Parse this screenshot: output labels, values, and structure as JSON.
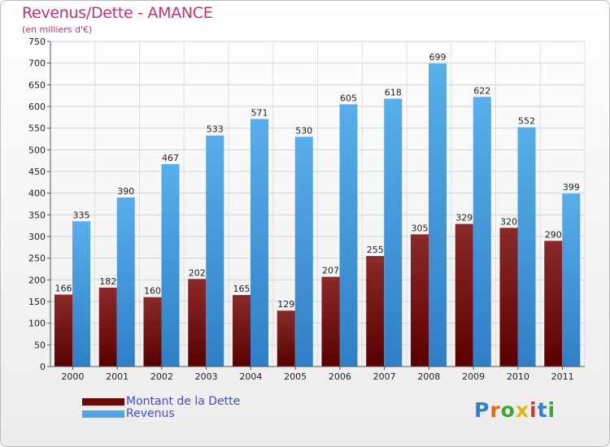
{
  "title": "Revenus/Dette - AMANCE",
  "subtitle": "(en milliers d'€)",
  "colors": {
    "debt": "#7a1a1a",
    "revenue": "#4ea6e6",
    "title": "#c8326c",
    "legend_text": "#4a4ad8"
  },
  "legend": [
    {
      "label": "Montant de la Dette",
      "color": "#6b0a0a"
    },
    {
      "label": "Revenus",
      "color": "#4ea6e6"
    }
  ],
  "logo": {
    "text": "Proxiti",
    "letters": [
      "P",
      "r",
      "o",
      "x",
      "i",
      "t",
      "i"
    ]
  },
  "chart_data": {
    "type": "bar",
    "categories": [
      "2000",
      "2001",
      "2002",
      "2003",
      "2004",
      "2005",
      "2006",
      "2007",
      "2008",
      "2009",
      "2010",
      "2011"
    ],
    "series": [
      {
        "name": "Montant de la Dette",
        "values": [
          166,
          182,
          160,
          202,
          165,
          129,
          207,
          255,
          305,
          329,
          320,
          290
        ]
      },
      {
        "name": "Revenus",
        "values": [
          335,
          390,
          467,
          533,
          571,
          530,
          605,
          618,
          699,
          622,
          552,
          399
        ]
      }
    ],
    "ylim": [
      0,
      750
    ],
    "yticks": [
      0,
      50,
      100,
      150,
      200,
      250,
      300,
      350,
      400,
      450,
      500,
      550,
      600,
      650,
      700,
      750
    ],
    "grid": true,
    "legend_position": "bottom-left"
  }
}
